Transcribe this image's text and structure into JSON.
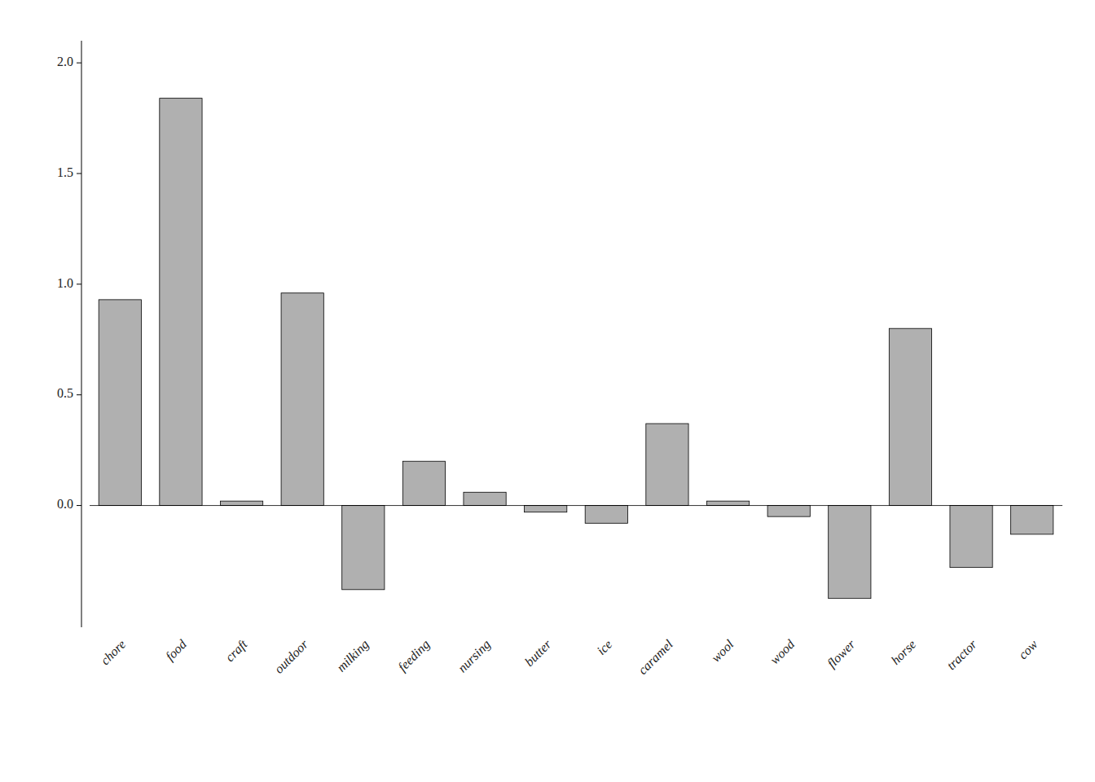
{
  "chart_data": {
    "type": "bar",
    "categories": [
      "chore",
      "food",
      "craft",
      "outdoor",
      "milking",
      "feeding",
      "nursing",
      "butter",
      "ice",
      "caramel",
      "wool",
      "wood",
      "flower",
      "horse",
      "tractor",
      "cow"
    ],
    "values": [
      0.93,
      1.84,
      0.02,
      0.96,
      -0.38,
      0.2,
      0.06,
      -0.03,
      -0.08,
      0.37,
      0.02,
      -0.05,
      -0.42,
      0.8,
      -0.28,
      -0.13
    ],
    "color": "#b0b0b0",
    "ylim": [
      -0.55,
      2.1
    ],
    "yticks": [
      {
        "value": 0.0,
        "label": "0.0"
      },
      0.5,
      {
        "value": 1.0,
        "label": "1.0"
      },
      1.5,
      {
        "value": 2.0,
        "label": "2.0"
      }
    ],
    "grid": false
  }
}
